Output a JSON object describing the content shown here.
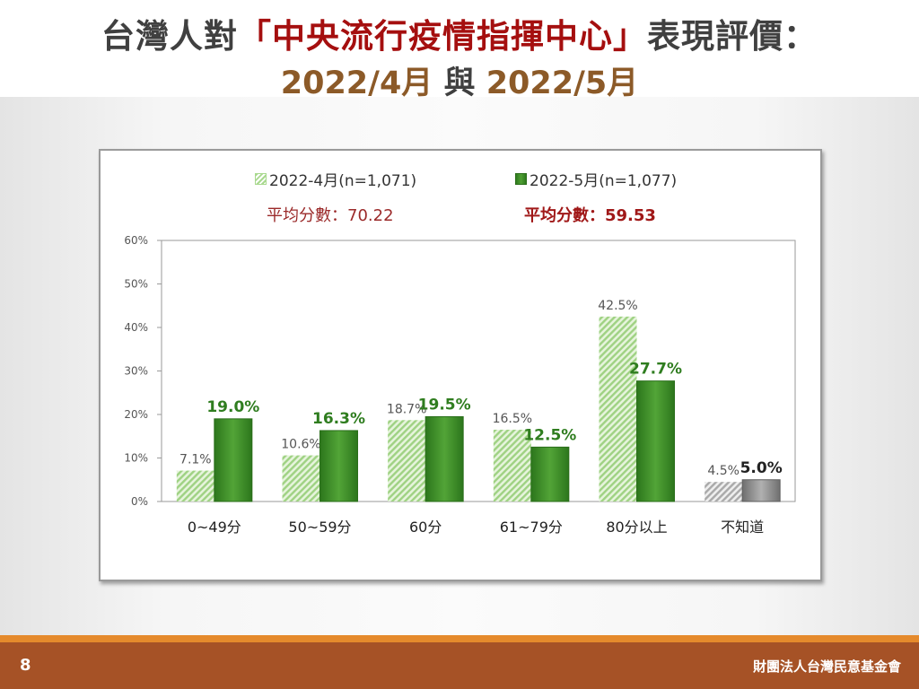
{
  "title": {
    "prefix": "台灣人對",
    "highlight": "「中央流行疫情指揮中心」",
    "suffix": "表現評價：",
    "date_a": "2022/4月",
    "connector": " 與 ",
    "date_b": "2022/5月"
  },
  "legend": {
    "series_a": "2022-4月(n=1,071)",
    "series_b": "2022-5月(n=1,077)",
    "avg_a": "平均分數：70.22",
    "avg_b": "平均分數：59.53"
  },
  "colors": {
    "series_a": "#a9d98f",
    "series_b": "#3d8b2a",
    "unknown_a": "#b5b5b5",
    "unknown_b": "#8a8a8a",
    "highlight_text": "#a50f0f",
    "footer": "#a65226"
  },
  "chart_data": {
    "type": "bar",
    "categories": [
      "0~49分",
      "50~59分",
      "60分",
      "61~79分",
      "80分以上",
      "不知道"
    ],
    "series": [
      {
        "name": "2022-4月(n=1,071)",
        "values": [
          7.1,
          10.6,
          18.7,
          16.5,
          42.5,
          4.5
        ],
        "labels": [
          "7.1%",
          "10.6%",
          "18.7%",
          "16.5%",
          "42.5%",
          "4.5%"
        ]
      },
      {
        "name": "2022-5月(n=1,077)",
        "values": [
          19.0,
          16.3,
          19.5,
          12.5,
          27.7,
          5.0
        ],
        "labels": [
          "19.0%",
          "16.3%",
          "19.5%",
          "12.5%",
          "27.7%",
          "5.0%"
        ]
      }
    ],
    "y_ticks": [
      "0%",
      "10%",
      "20%",
      "30%",
      "40%",
      "50%",
      "60%"
    ],
    "ylim": [
      0,
      60
    ],
    "grid": false,
    "legend_position": "top"
  },
  "footer": {
    "page": "8",
    "org": "財團法人台灣民意基金會"
  }
}
